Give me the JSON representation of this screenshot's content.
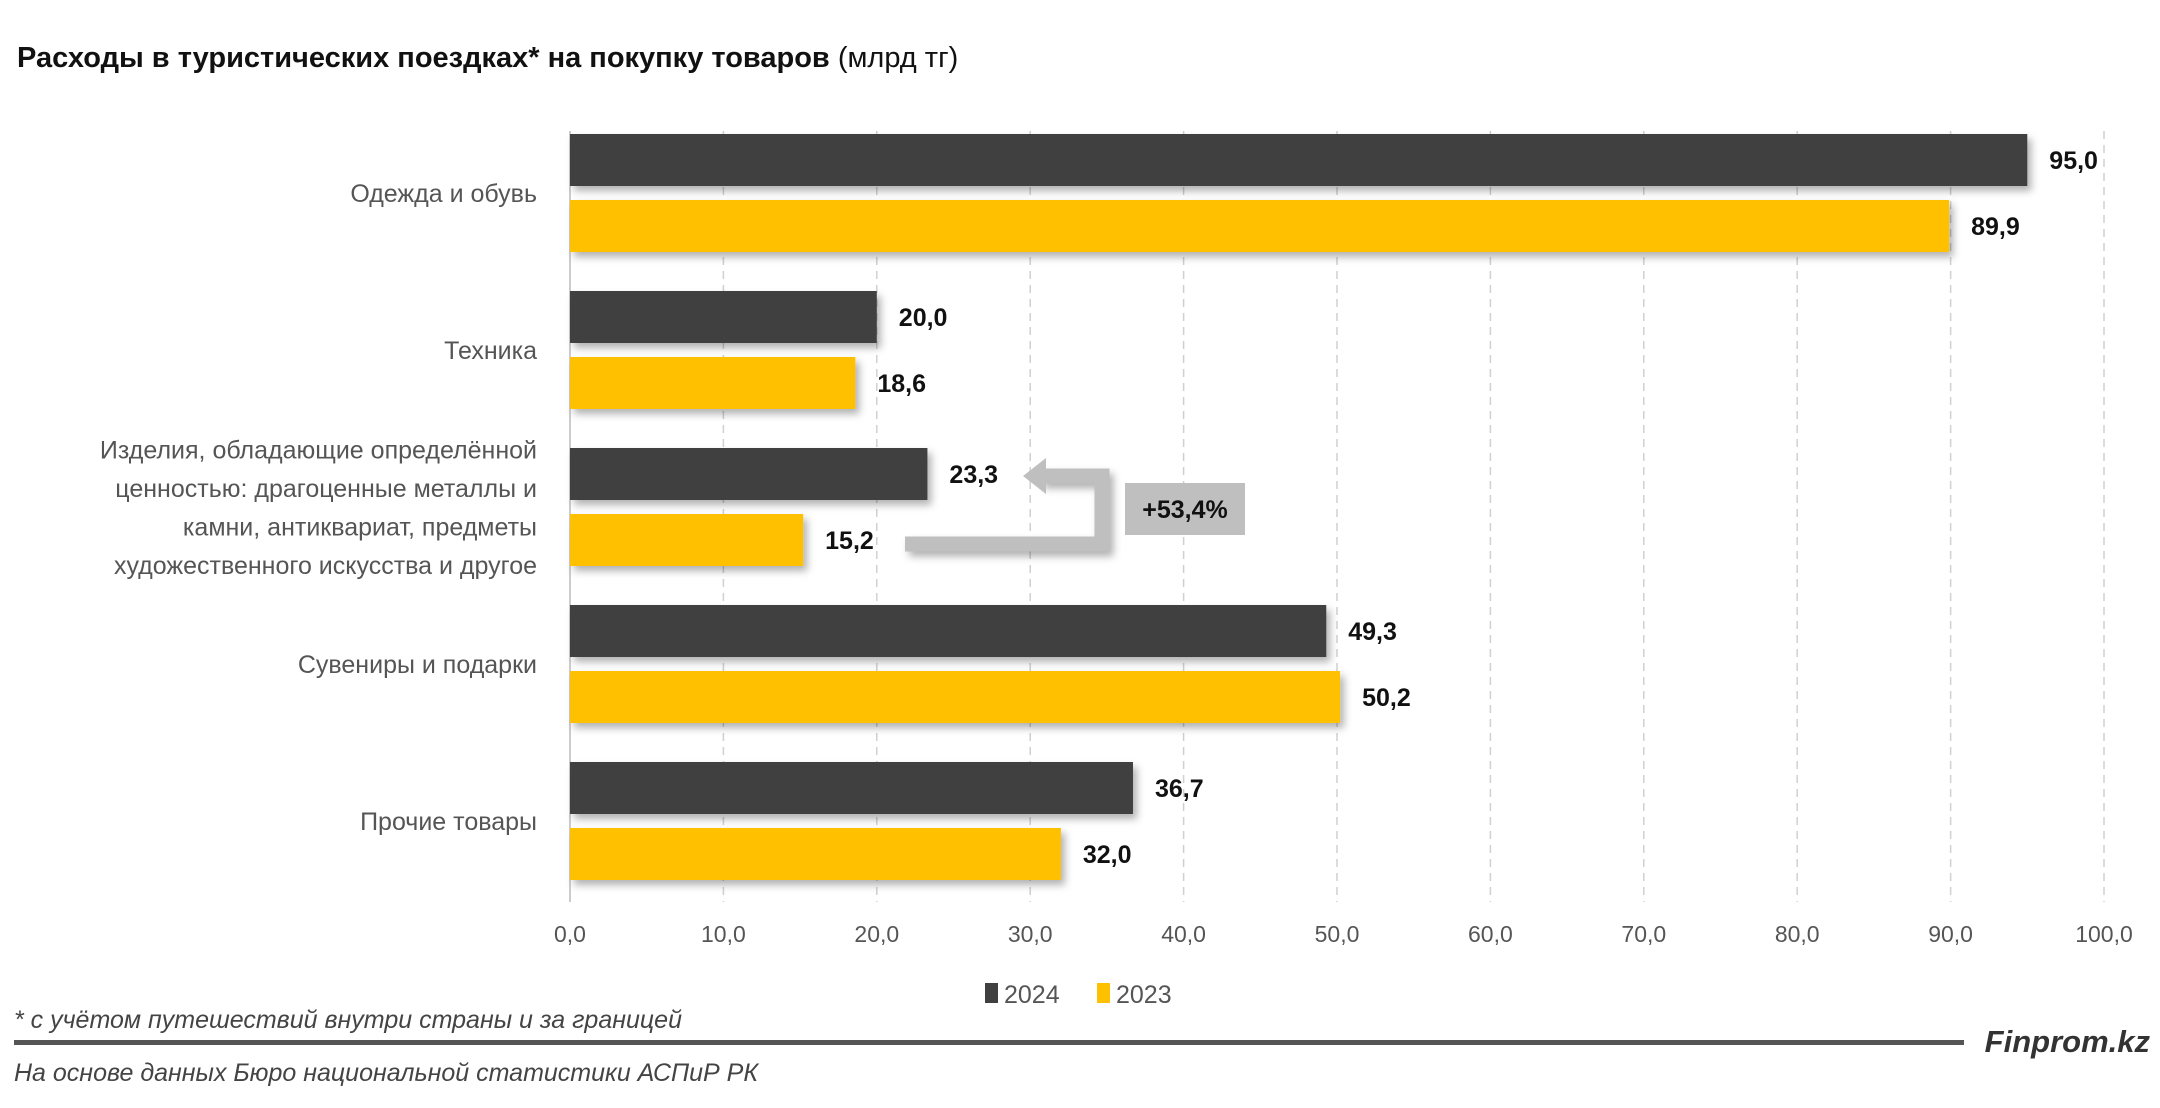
{
  "chart_data": {
    "type": "bar",
    "orientation": "horizontal",
    "title": "Расходы в туристических поездках* на покупку товаров",
    "title_unit": "(млрд тг)",
    "categories": [
      [
        "Одежда и обувь"
      ],
      [
        "Техника"
      ],
      [
        "Изделия, обладающие определённой",
        "ценностью: драгоценные металлы и",
        "камни, антиквариат, предметы",
        "художественного искусства и другое"
      ],
      [
        "Сувениры и подарки"
      ],
      [
        "Прочие товары"
      ]
    ],
    "series": [
      {
        "name": "2024",
        "color": "#404040",
        "values": [
          95.0,
          20.0,
          23.3,
          49.3,
          36.7
        ],
        "labels": [
          "95,0",
          "20,0",
          "23,3",
          "49,3",
          "36,7"
        ]
      },
      {
        "name": "2023",
        "color": "#FFC000",
        "values": [
          89.9,
          18.6,
          15.2,
          50.2,
          32.0
        ],
        "labels": [
          "89,9",
          "18,6",
          "15,2",
          "50,2",
          "32,0"
        ]
      }
    ],
    "xlim": [
      0,
      100
    ],
    "xticks": [
      "0,0",
      "10,0",
      "20,0",
      "30,0",
      "40,0",
      "50,0",
      "60,0",
      "70,0",
      "80,0",
      "90,0",
      "100,0"
    ],
    "grid": "vertical dashed",
    "legend_position": "bottom",
    "annotation": {
      "text": "+53,4%",
      "category_index": 2,
      "color": "#BFBFBF"
    }
  },
  "footnote": "* с учётом путешествий внутри страны и за границей",
  "source": "На основе данных Бюро национальной статистики АСПиР РК",
  "brand": "Finprom.kz"
}
